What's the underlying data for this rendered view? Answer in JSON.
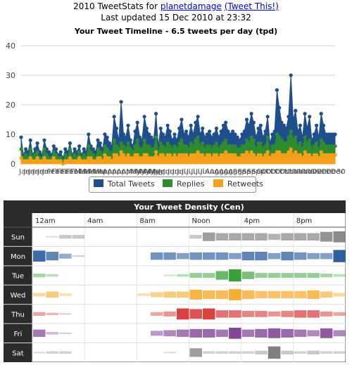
{
  "header": {
    "line1_prefix": "2010 TweetStats for ",
    "username": "planetdamage",
    "tweet_this": "(Tweet This!)",
    "last_updated": "Last updated 15 Dec 2010 at 23:32"
  },
  "chart_data": [
    {
      "type": "area",
      "title": "Your Tweet Timeline - 6.5 tweets per day (tpd)",
      "ylim": [
        0,
        40
      ],
      "yticks": [
        0,
        10,
        20,
        30,
        40
      ],
      "grid": true,
      "legend_position": "bottom",
      "x_tick_labels": [
        "Jan",
        "Feb",
        "Mar",
        "Apr",
        "May",
        "Jun",
        "Jul",
        "Aug",
        "Sep",
        "Oct",
        "Nov",
        "Dec"
      ],
      "x_edge_label": "30",
      "colors": {
        "Total Tweets": "#1f4e8c",
        "Replies": "#2e8b2e",
        "Retweets": "#f5a01a"
      },
      "series": [
        {
          "name": "Total Tweets",
          "values": [
            9,
            3,
            5,
            4,
            8,
            3,
            5,
            7,
            4,
            3,
            8,
            5,
            4,
            3,
            6,
            5,
            3,
            4,
            2,
            5,
            4,
            7,
            3,
            5,
            4,
            6,
            3,
            5,
            4,
            10,
            6,
            5,
            4,
            8,
            7,
            5,
            10,
            9,
            7,
            6,
            16,
            12,
            8,
            21,
            10,
            9,
            13,
            8,
            6,
            11,
            14,
            9,
            8,
            16,
            12,
            10,
            9,
            8,
            17,
            6,
            12,
            10,
            9,
            13,
            11,
            8,
            10,
            8,
            12,
            15,
            10,
            11,
            9,
            13,
            10,
            14,
            16,
            10,
            12,
            9,
            10,
            11,
            9,
            10,
            12,
            9,
            11,
            13,
            14,
            11,
            10,
            11,
            10,
            9,
            8,
            10,
            11,
            15,
            13,
            17,
            14,
            9,
            12,
            13,
            9,
            11,
            16,
            7,
            10,
            11,
            25,
            19,
            14,
            13,
            12,
            16,
            30,
            15,
            18,
            11,
            13,
            9,
            17,
            12,
            16,
            8,
            10,
            13,
            9,
            17,
            13,
            10,
            10,
            10,
            10,
            10
          ]
        },
        {
          "name": "Replies",
          "values": [
            5,
            2,
            3,
            2,
            5,
            2,
            3,
            4,
            2,
            2,
            5,
            3,
            2,
            2,
            4,
            3,
            2,
            2,
            1,
            3,
            2,
            5,
            2,
            3,
            2,
            4,
            2,
            3,
            2,
            6,
            4,
            3,
            2,
            5,
            4,
            3,
            6,
            5,
            4,
            3,
            8,
            6,
            5,
            7,
            6,
            5,
            7,
            5,
            4,
            6,
            8,
            5,
            5,
            8,
            6,
            6,
            5,
            5,
            9,
            4,
            7,
            6,
            5,
            7,
            6,
            5,
            6,
            5,
            7,
            8,
            6,
            6,
            5,
            7,
            6,
            8,
            9,
            6,
            7,
            5,
            6,
            6,
            5,
            6,
            7,
            5,
            6,
            7,
            8,
            6,
            6,
            6,
            6,
            5,
            5,
            6,
            6,
            8,
            7,
            9,
            8,
            5,
            7,
            7,
            5,
            6,
            9,
            4,
            6,
            6,
            10,
            9,
            8,
            7,
            7,
            9,
            11,
            8,
            9,
            6,
            7,
            5,
            9,
            7,
            8,
            5,
            6,
            7,
            5,
            8,
            7,
            6,
            6,
            6,
            6,
            6
          ]
        },
        {
          "name": "Retweets",
          "values": [
            2,
            1,
            1,
            1,
            2,
            1,
            1,
            2,
            1,
            1,
            2,
            1,
            1,
            1,
            2,
            1,
            1,
            1,
            0,
            1,
            1,
            2,
            1,
            1,
            1,
            2,
            1,
            1,
            1,
            2,
            2,
            1,
            1,
            2,
            2,
            1,
            3,
            2,
            2,
            1,
            3,
            3,
            2,
            4,
            3,
            2,
            3,
            2,
            2,
            3,
            3,
            2,
            2,
            3,
            3,
            2,
            2,
            2,
            4,
            2,
            3,
            3,
            2,
            3,
            3,
            2,
            3,
            2,
            3,
            3,
            3,
            3,
            2,
            3,
            3,
            3,
            4,
            3,
            3,
            2,
            3,
            3,
            2,
            3,
            3,
            2,
            3,
            3,
            4,
            3,
            3,
            3,
            3,
            2,
            2,
            3,
            3,
            4,
            3,
            4,
            3,
            2,
            3,
            3,
            2,
            3,
            4,
            2,
            3,
            3,
            4,
            4,
            3,
            3,
            3,
            4,
            5,
            3,
            4,
            3,
            3,
            2,
            4,
            3,
            3,
            2,
            3,
            3,
            2,
            4,
            3,
            3,
            3,
            3,
            3,
            3
          ]
        }
      ]
    },
    {
      "type": "heatmap",
      "title": "Your Tweet Density (Cen)",
      "rows": [
        "Sun",
        "Mon",
        "Tue",
        "Wed",
        "Thu",
        "Fri",
        "Sat"
      ],
      "columns": [
        "12am",
        "4am",
        "8am",
        "Noon",
        "4pm",
        "8pm"
      ],
      "row_colors": [
        "#808080",
        "#2f5fa0",
        "#3aa03a",
        "#f5a623",
        "#d63030",
        "#7a3a8c",
        "#808080"
      ],
      "values": [
        [
          0.0,
          0.1,
          0.3,
          0.3,
          0.0,
          0.0,
          0.0,
          0.0,
          0.0,
          0.0,
          0.0,
          0.0,
          0.3,
          0.7,
          0.6,
          0.6,
          0.6,
          0.6,
          0.5,
          0.6,
          0.6,
          0.6,
          0.8,
          0.9
        ],
        [
          0.9,
          0.7,
          0.4,
          0.1,
          0.0,
          0.0,
          0.0,
          0.0,
          0.0,
          0.6,
          0.6,
          0.5,
          0.6,
          0.6,
          0.6,
          0.5,
          0.7,
          0.7,
          0.5,
          0.7,
          0.6,
          0.5,
          0.5,
          1.0
        ],
        [
          0.3,
          0.2,
          0.0,
          0.0,
          0.0,
          0.0,
          0.0,
          0.0,
          0.0,
          0.0,
          0.1,
          0.2,
          0.4,
          0.4,
          0.7,
          1.0,
          0.6,
          0.4,
          0.4,
          0.4,
          0.4,
          0.4,
          0.3,
          0.2
        ],
        [
          0.3,
          0.5,
          0.2,
          0.0,
          0.0,
          0.0,
          0.0,
          0.0,
          0.2,
          0.4,
          0.5,
          0.5,
          0.8,
          0.7,
          0.7,
          0.9,
          0.7,
          0.6,
          0.6,
          0.6,
          0.6,
          0.7,
          0.5,
          0.3
        ],
        [
          0.3,
          0.2,
          0.1,
          0.0,
          0.0,
          0.0,
          0.0,
          0.0,
          0.0,
          0.3,
          0.4,
          0.9,
          0.8,
          0.9,
          0.6,
          0.6,
          0.5,
          0.5,
          0.4,
          0.5,
          0.6,
          0.6,
          0.4,
          0.3
        ],
        [
          0.6,
          0.2,
          0.1,
          0.0,
          0.0,
          0.0,
          0.0,
          0.0,
          0.0,
          0.4,
          0.5,
          0.6,
          0.7,
          0.7,
          0.6,
          0.9,
          0.6,
          0.7,
          0.8,
          0.7,
          0.6,
          0.5,
          0.8,
          0.5
        ],
        [
          0.1,
          0.2,
          0.2,
          0.0,
          0.0,
          0.0,
          0.0,
          0.0,
          0.0,
          0.0,
          0.1,
          0.0,
          0.7,
          0.2,
          0.2,
          0.2,
          0.2,
          0.3,
          1.0,
          0.3,
          0.2,
          0.3,
          0.2,
          0.2
        ]
      ]
    }
  ]
}
